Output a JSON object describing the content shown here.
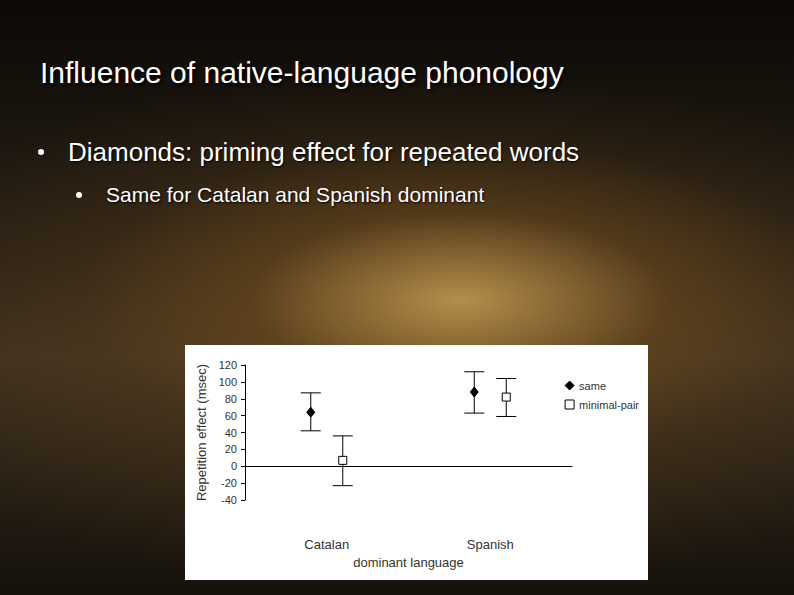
{
  "slide": {
    "title": "Influence of native-language phonology",
    "bullets": [
      "Diamonds: priming effect for repeated words"
    ],
    "sub_bullets": [
      "Same for Catalan and Spanish dominant"
    ]
  },
  "chart_data": {
    "type": "scatter",
    "x_label": "dominant language",
    "y_label": "Repetition effect (msec)",
    "categories": [
      "Catalan",
      "Spanish"
    ],
    "series": [
      {
        "name": "same",
        "color": "#000000",
        "marker": "diamond",
        "values": [
          64,
          88
        ],
        "error_low": [
          42,
          63
        ],
        "error_high": [
          87,
          112
        ]
      },
      {
        "name": "minimal-pair",
        "color": "#000000",
        "marker": "open-square",
        "values": [
          7,
          82
        ],
        "error_low": [
          -23,
          59
        ],
        "error_high": [
          36,
          104
        ]
      }
    ],
    "ylim": [
      -40,
      120
    ],
    "yticks": [
      -40,
      -20,
      0,
      20,
      40,
      60,
      80,
      100,
      120
    ],
    "grid": false,
    "legend": "upper right"
  }
}
